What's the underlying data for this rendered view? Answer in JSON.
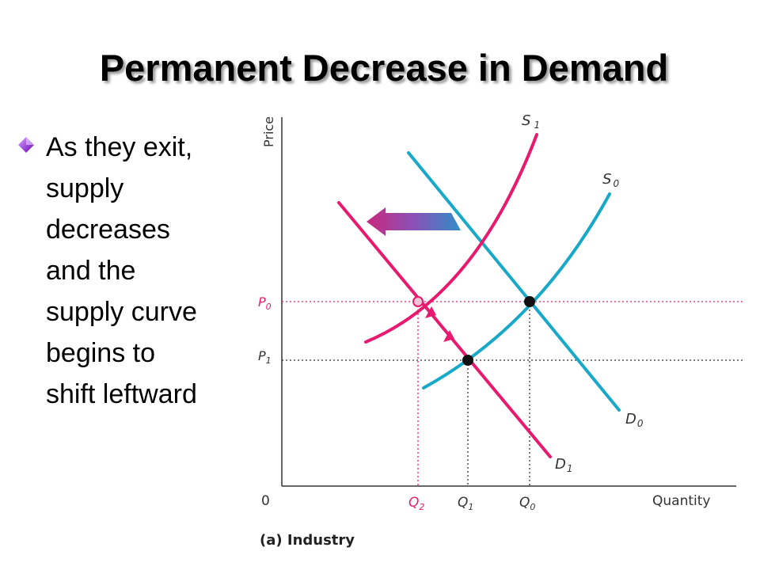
{
  "slide": {
    "title": "Permanent Decrease in Demand",
    "bullet": {
      "icon": "diamond-bullet-icon",
      "lines": [
        "As they exit,",
        "supply",
        "decreases",
        "and the",
        "supply curve",
        "begins to",
        "shift leftward"
      ]
    }
  },
  "diagram": {
    "axis_y_label": "Price",
    "axis_x_label": "Quantity",
    "origin_label": "0",
    "panel_caption": "(a) Industry",
    "curves": {
      "S1": {
        "letter": "S",
        "sub": "1",
        "color": "#e8196e"
      },
      "S0": {
        "letter": "S",
        "sub": "0",
        "color": "#18a8c8"
      },
      "D0": {
        "letter": "D",
        "sub": "0",
        "color": "#18a8c8"
      },
      "D1": {
        "letter": "D",
        "sub": "1",
        "color": "#e8196e"
      }
    },
    "price_levels": {
      "P0": {
        "letter": "P",
        "sub": "0"
      },
      "P1": {
        "letter": "P",
        "sub": "1"
      }
    },
    "quantity_levels": {
      "Q2": {
        "letter": "Q",
        "sub": "2"
      },
      "Q1": {
        "letter": "Q",
        "sub": "1"
      },
      "Q0": {
        "letter": "Q",
        "sub": "0"
      }
    },
    "shift_arrow": {
      "direction": "left",
      "color_start": "#c8287c",
      "color_end": "#2e8ec8"
    }
  }
}
